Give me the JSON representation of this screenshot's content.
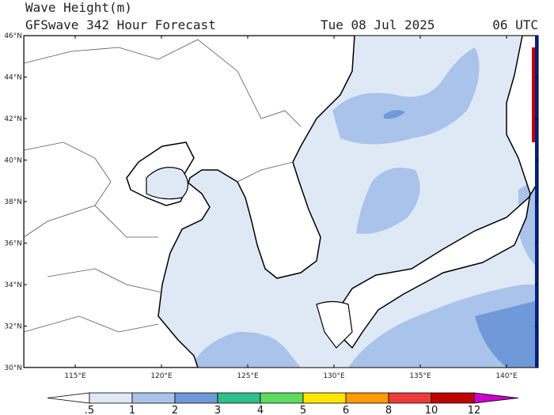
{
  "header": {
    "title": "Wave Height(m)",
    "subtitle": "GFSwave 342 Hour Forecast",
    "date": "Tue 08 Jul 2025",
    "time": "06 UTC"
  },
  "map": {
    "lat_labels": [
      "46°N",
      "44°N",
      "42°N",
      "40°N",
      "38°N",
      "36°N",
      "34°N",
      "32°N",
      "30°N"
    ],
    "lon_labels": [
      "115°E",
      "120°E",
      "125°E",
      "130°E",
      "135°E",
      "140°E"
    ]
  },
  "colorbar": {
    "labels": [
      ".5",
      "1",
      "2",
      "3",
      "4",
      "5",
      "6",
      "8",
      "10",
      "12"
    ],
    "colors": [
      "#ffffff",
      "#dfe9f6",
      "#a9c3ea",
      "#6f99d8",
      "#2fbf8a",
      "#5fdc5f",
      "#ffe600",
      "#ff9a00",
      "#ee3a3a",
      "#c00000",
      "#cc00cc"
    ]
  }
}
